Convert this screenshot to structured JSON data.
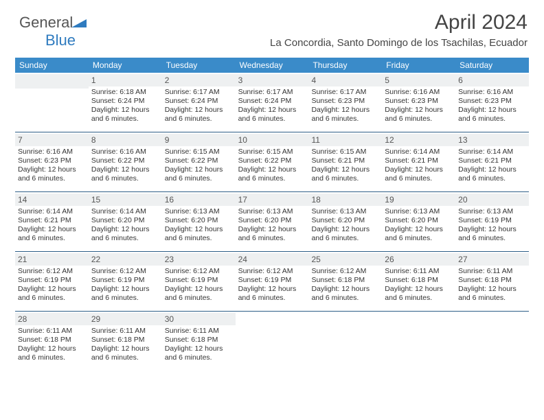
{
  "brand": {
    "word1": "General",
    "word2": "Blue",
    "logo_color": "#2f7bbf",
    "text_color": "#555555"
  },
  "header": {
    "title": "April 2024",
    "subtitle": "La Concordia, Santo Domingo de los Tsachilas, Ecuador"
  },
  "colors": {
    "dow_bg": "#3a8bc9",
    "dow_text": "#ffffff",
    "week_border": "#2c5d86",
    "daynum_bg": "#eef0f1",
    "daynum_text": "#555555",
    "body_text": "#333333",
    "page_bg": "#ffffff"
  },
  "dow": [
    "Sunday",
    "Monday",
    "Tuesday",
    "Wednesday",
    "Thursday",
    "Friday",
    "Saturday"
  ],
  "weeks": [
    [
      {
        "num": "",
        "lines": []
      },
      {
        "num": "1",
        "lines": [
          "Sunrise: 6:18 AM",
          "Sunset: 6:24 PM",
          "Daylight: 12 hours",
          "and 6 minutes."
        ]
      },
      {
        "num": "2",
        "lines": [
          "Sunrise: 6:17 AM",
          "Sunset: 6:24 PM",
          "Daylight: 12 hours",
          "and 6 minutes."
        ]
      },
      {
        "num": "3",
        "lines": [
          "Sunrise: 6:17 AM",
          "Sunset: 6:24 PM",
          "Daylight: 12 hours",
          "and 6 minutes."
        ]
      },
      {
        "num": "4",
        "lines": [
          "Sunrise: 6:17 AM",
          "Sunset: 6:23 PM",
          "Daylight: 12 hours",
          "and 6 minutes."
        ]
      },
      {
        "num": "5",
        "lines": [
          "Sunrise: 6:16 AM",
          "Sunset: 6:23 PM",
          "Daylight: 12 hours",
          "and 6 minutes."
        ]
      },
      {
        "num": "6",
        "lines": [
          "Sunrise: 6:16 AM",
          "Sunset: 6:23 PM",
          "Daylight: 12 hours",
          "and 6 minutes."
        ]
      }
    ],
    [
      {
        "num": "7",
        "lines": [
          "Sunrise: 6:16 AM",
          "Sunset: 6:23 PM",
          "Daylight: 12 hours",
          "and 6 minutes."
        ]
      },
      {
        "num": "8",
        "lines": [
          "Sunrise: 6:16 AM",
          "Sunset: 6:22 PM",
          "Daylight: 12 hours",
          "and 6 minutes."
        ]
      },
      {
        "num": "9",
        "lines": [
          "Sunrise: 6:15 AM",
          "Sunset: 6:22 PM",
          "Daylight: 12 hours",
          "and 6 minutes."
        ]
      },
      {
        "num": "10",
        "lines": [
          "Sunrise: 6:15 AM",
          "Sunset: 6:22 PM",
          "Daylight: 12 hours",
          "and 6 minutes."
        ]
      },
      {
        "num": "11",
        "lines": [
          "Sunrise: 6:15 AM",
          "Sunset: 6:21 PM",
          "Daylight: 12 hours",
          "and 6 minutes."
        ]
      },
      {
        "num": "12",
        "lines": [
          "Sunrise: 6:14 AM",
          "Sunset: 6:21 PM",
          "Daylight: 12 hours",
          "and 6 minutes."
        ]
      },
      {
        "num": "13",
        "lines": [
          "Sunrise: 6:14 AM",
          "Sunset: 6:21 PM",
          "Daylight: 12 hours",
          "and 6 minutes."
        ]
      }
    ],
    [
      {
        "num": "14",
        "lines": [
          "Sunrise: 6:14 AM",
          "Sunset: 6:21 PM",
          "Daylight: 12 hours",
          "and 6 minutes."
        ]
      },
      {
        "num": "15",
        "lines": [
          "Sunrise: 6:14 AM",
          "Sunset: 6:20 PM",
          "Daylight: 12 hours",
          "and 6 minutes."
        ]
      },
      {
        "num": "16",
        "lines": [
          "Sunrise: 6:13 AM",
          "Sunset: 6:20 PM",
          "Daylight: 12 hours",
          "and 6 minutes."
        ]
      },
      {
        "num": "17",
        "lines": [
          "Sunrise: 6:13 AM",
          "Sunset: 6:20 PM",
          "Daylight: 12 hours",
          "and 6 minutes."
        ]
      },
      {
        "num": "18",
        "lines": [
          "Sunrise: 6:13 AM",
          "Sunset: 6:20 PM",
          "Daylight: 12 hours",
          "and 6 minutes."
        ]
      },
      {
        "num": "19",
        "lines": [
          "Sunrise: 6:13 AM",
          "Sunset: 6:20 PM",
          "Daylight: 12 hours",
          "and 6 minutes."
        ]
      },
      {
        "num": "20",
        "lines": [
          "Sunrise: 6:13 AM",
          "Sunset: 6:19 PM",
          "Daylight: 12 hours",
          "and 6 minutes."
        ]
      }
    ],
    [
      {
        "num": "21",
        "lines": [
          "Sunrise: 6:12 AM",
          "Sunset: 6:19 PM",
          "Daylight: 12 hours",
          "and 6 minutes."
        ]
      },
      {
        "num": "22",
        "lines": [
          "Sunrise: 6:12 AM",
          "Sunset: 6:19 PM",
          "Daylight: 12 hours",
          "and 6 minutes."
        ]
      },
      {
        "num": "23",
        "lines": [
          "Sunrise: 6:12 AM",
          "Sunset: 6:19 PM",
          "Daylight: 12 hours",
          "and 6 minutes."
        ]
      },
      {
        "num": "24",
        "lines": [
          "Sunrise: 6:12 AM",
          "Sunset: 6:19 PM",
          "Daylight: 12 hours",
          "and 6 minutes."
        ]
      },
      {
        "num": "25",
        "lines": [
          "Sunrise: 6:12 AM",
          "Sunset: 6:18 PM",
          "Daylight: 12 hours",
          "and 6 minutes."
        ]
      },
      {
        "num": "26",
        "lines": [
          "Sunrise: 6:11 AM",
          "Sunset: 6:18 PM",
          "Daylight: 12 hours",
          "and 6 minutes."
        ]
      },
      {
        "num": "27",
        "lines": [
          "Sunrise: 6:11 AM",
          "Sunset: 6:18 PM",
          "Daylight: 12 hours",
          "and 6 minutes."
        ]
      }
    ],
    [
      {
        "num": "28",
        "lines": [
          "Sunrise: 6:11 AM",
          "Sunset: 6:18 PM",
          "Daylight: 12 hours",
          "and 6 minutes."
        ]
      },
      {
        "num": "29",
        "lines": [
          "Sunrise: 6:11 AM",
          "Sunset: 6:18 PM",
          "Daylight: 12 hours",
          "and 6 minutes."
        ]
      },
      {
        "num": "30",
        "lines": [
          "Sunrise: 6:11 AM",
          "Sunset: 6:18 PM",
          "Daylight: 12 hours",
          "and 6 minutes."
        ]
      },
      {
        "num": "",
        "lines": []
      },
      {
        "num": "",
        "lines": []
      },
      {
        "num": "",
        "lines": []
      },
      {
        "num": "",
        "lines": []
      }
    ]
  ]
}
